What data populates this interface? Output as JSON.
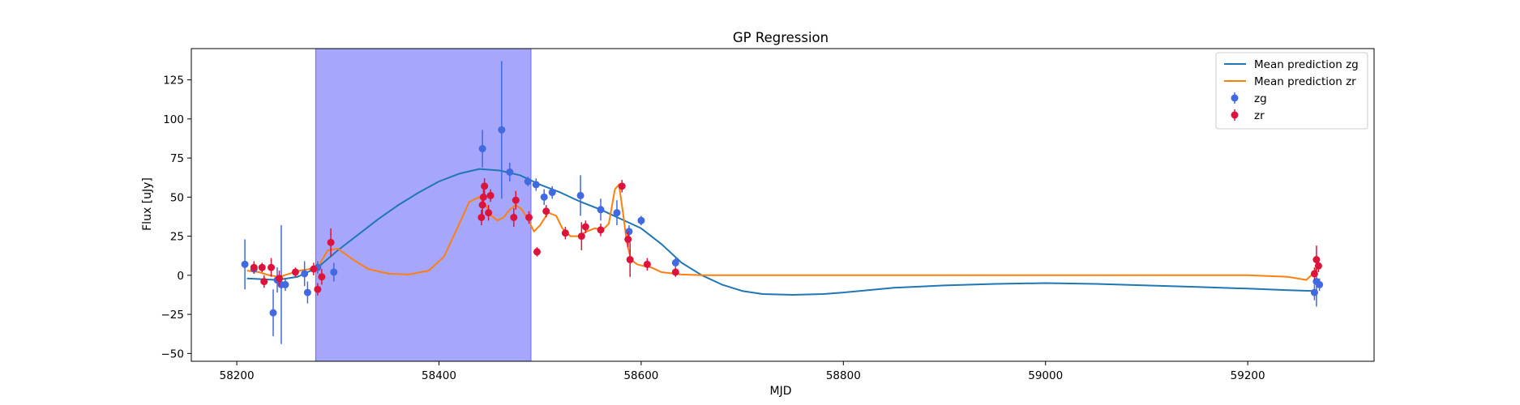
{
  "chart_data": {
    "type": "scatter",
    "title": "GP Regression",
    "xlabel": "MJD",
    "ylabel": "Flux [uJy]",
    "xlim": [
      58155,
      59325
    ],
    "ylim": [
      -55,
      145
    ],
    "xticks": [
      58200,
      58400,
      58600,
      58800,
      59000,
      59200
    ],
    "yticks": [
      -50,
      -25,
      0,
      25,
      50,
      75,
      100,
      125
    ],
    "grid": false,
    "legend_position": "top-right",
    "shaded_region": {
      "x0": 58278,
      "x1": 58491,
      "color": "#a6a6fc"
    },
    "lines": [
      {
        "name": "Mean prediction zg",
        "color": "#1f77b4",
        "x": [
          58210,
          58240,
          58260,
          58280,
          58300,
          58320,
          58340,
          58360,
          58380,
          58400,
          58420,
          58440,
          58460,
          58480,
          58500,
          58520,
          58540,
          58560,
          58580,
          58600,
          58620,
          58640,
          58660,
          58680,
          58700,
          58720,
          58750,
          58780,
          58800,
          58850,
          58900,
          58950,
          59000,
          59050,
          59100,
          59150,
          59200,
          59240,
          59265
        ],
        "y": [
          -2,
          -3,
          -1,
          5,
          16,
          26,
          36,
          45,
          53,
          60,
          65,
          68,
          67,
          64,
          58,
          53,
          47,
          42,
          36,
          30,
          20,
          8,
          0,
          -6,
          -10,
          -12,
          -12.5,
          -12,
          -11,
          -8,
          -6.5,
          -5.5,
          -5,
          -5.5,
          -6.5,
          -7.5,
          -8.5,
          -9.5,
          -10
        ]
      },
      {
        "name": "Mean prediction zr",
        "color": "#ff7f0e",
        "x": [
          58210,
          58222,
          58232,
          58242,
          58252,
          58262,
          58272,
          58280,
          58290,
          58300,
          58315,
          58330,
          58350,
          58370,
          58390,
          58405,
          58418,
          58430,
          58440,
          58446,
          58452,
          58458,
          58464,
          58470,
          58476,
          58482,
          58488,
          58494,
          58500,
          58508,
          58516,
          58522,
          58530,
          58538,
          58546,
          58554,
          58562,
          58568,
          58574,
          58578,
          58582,
          58586,
          58590,
          58596,
          58602,
          58610,
          58620,
          58640,
          58660,
          58700,
          58800,
          58900,
          59000,
          59100,
          59200,
          59240,
          59258,
          59266,
          59270
        ],
        "y": [
          3,
          2,
          0,
          -1,
          1,
          3,
          4,
          5,
          16,
          17,
          10,
          4,
          1,
          0.5,
          3,
          12,
          30,
          47,
          50,
          45,
          38,
          35,
          37,
          42,
          45,
          42,
          36,
          28,
          32,
          40,
          38,
          30,
          25,
          25,
          28,
          30,
          29,
          33,
          55,
          58,
          40,
          20,
          10,
          7,
          6,
          5,
          2,
          0.5,
          0,
          0,
          0,
          0,
          0,
          0,
          0,
          -1,
          -3,
          2,
          8
        ]
      }
    ],
    "series": [
      {
        "name": "zg",
        "color": "#4169e1",
        "points": [
          {
            "x": 58208,
            "y": 7,
            "err": 16
          },
          {
            "x": 58217,
            "y": 4,
            "err": 3
          },
          {
            "x": 58236,
            "y": -24,
            "err": 15
          },
          {
            "x": 58240,
            "y": -3,
            "err": 8
          },
          {
            "x": 58244,
            "y": -6,
            "err": 38
          },
          {
            "x": 58248,
            "y": -6,
            "err": 4
          },
          {
            "x": 58267,
            "y": 1,
            "err": 8
          },
          {
            "x": 58270,
            "y": -11,
            "err": 7
          },
          {
            "x": 58280,
            "y": 5,
            "err": 4
          },
          {
            "x": 58296,
            "y": 2,
            "err": 6
          },
          {
            "x": 58443,
            "y": 81,
            "err": 12
          },
          {
            "x": 58462,
            "y": 93,
            "err": 44
          },
          {
            "x": 58470,
            "y": 66,
            "err": 6
          },
          {
            "x": 58488,
            "y": 60,
            "err": 3
          },
          {
            "x": 58496,
            "y": 58,
            "err": 4
          },
          {
            "x": 58504,
            "y": 50,
            "err": 5
          },
          {
            "x": 58512,
            "y": 53,
            "err": 4
          },
          {
            "x": 58540,
            "y": 51,
            "err": 13
          },
          {
            "x": 58560,
            "y": 42,
            "err": 7
          },
          {
            "x": 58576,
            "y": 40,
            "err": 8
          },
          {
            "x": 58588,
            "y": 28,
            "err": 4
          },
          {
            "x": 58600,
            "y": 35,
            "err": 3
          },
          {
            "x": 58634,
            "y": 8,
            "err": 3
          },
          {
            "x": 59266,
            "y": -11,
            "err": 5
          },
          {
            "x": 59268,
            "y": -4,
            "err": 16
          },
          {
            "x": 59271,
            "y": -6,
            "err": 4
          }
        ]
      },
      {
        "name": "zr",
        "color": "#dc143c",
        "points": [
          {
            "x": 58217,
            "y": 5,
            "err": 4
          },
          {
            "x": 58225,
            "y": 5,
            "err": 3
          },
          {
            "x": 58227,
            "y": -4,
            "err": 4
          },
          {
            "x": 58234,
            "y": 5,
            "err": 6
          },
          {
            "x": 58242,
            "y": -2,
            "err": 5
          },
          {
            "x": 58258,
            "y": 2,
            "err": 3
          },
          {
            "x": 58276,
            "y": 4,
            "err": 4
          },
          {
            "x": 58280,
            "y": -9,
            "err": 4
          },
          {
            "x": 58284,
            "y": -1,
            "err": 5
          },
          {
            "x": 58293,
            "y": 21,
            "err": 9
          },
          {
            "x": 58442,
            "y": 37,
            "err": 5
          },
          {
            "x": 58443,
            "y": 45,
            "err": 6
          },
          {
            "x": 58444,
            "y": 50,
            "err": 7
          },
          {
            "x": 58445,
            "y": 57,
            "err": 5
          },
          {
            "x": 58449,
            "y": 40,
            "err": 5
          },
          {
            "x": 58451,
            "y": 51,
            "err": 4
          },
          {
            "x": 58474,
            "y": 37,
            "err": 6
          },
          {
            "x": 58476,
            "y": 48,
            "err": 6
          },
          {
            "x": 58489,
            "y": 37,
            "err": 4
          },
          {
            "x": 58497,
            "y": 15,
            "err": 3
          },
          {
            "x": 58506,
            "y": 41,
            "err": 4
          },
          {
            "x": 58525,
            "y": 27,
            "err": 4
          },
          {
            "x": 58541,
            "y": 25,
            "err": 9
          },
          {
            "x": 58545,
            "y": 31,
            "err": 4
          },
          {
            "x": 58560,
            "y": 29,
            "err": 4
          },
          {
            "x": 58581,
            "y": 57,
            "err": 4
          },
          {
            "x": 58587,
            "y": 23,
            "err": 5
          },
          {
            "x": 58589,
            "y": 10,
            "err": 11
          },
          {
            "x": 58606,
            "y": 7,
            "err": 4
          },
          {
            "x": 58634,
            "y": 2,
            "err": 3
          },
          {
            "x": 59266,
            "y": 1,
            "err": 4
          },
          {
            "x": 59268,
            "y": 10,
            "err": 9
          },
          {
            "x": 59270,
            "y": 6,
            "err": 4
          }
        ]
      }
    ]
  }
}
